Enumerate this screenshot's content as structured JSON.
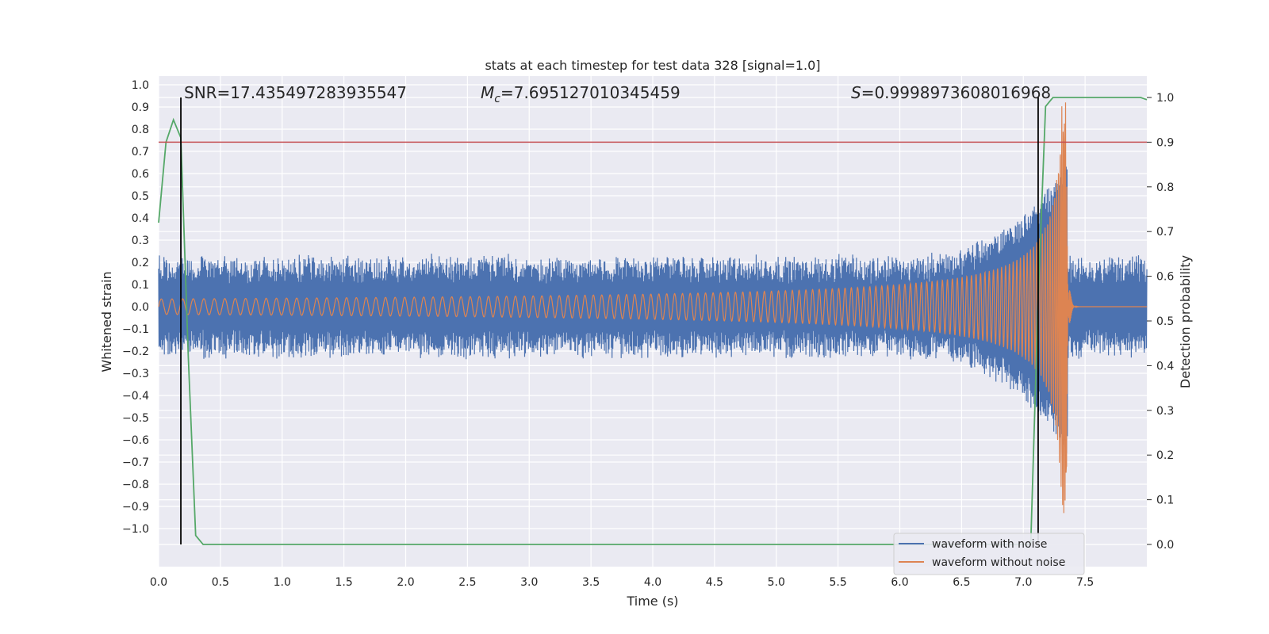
{
  "chart_data": {
    "type": "line",
    "title": "stats at each timestep for test data 328 [signal=1.0]",
    "xlabel": "Time (s)",
    "ylabel": "Whitened strain",
    "y2label": "Detection probability",
    "xlim": [
      0.0,
      8.0
    ],
    "ylim": [
      -1.15,
      1.0
    ],
    "y2lim": [
      -0.05,
      1.04
    ],
    "x_ticks": [
      "0.0",
      "0.5",
      "1.0",
      "1.5",
      "2.0",
      "2.5",
      "3.0",
      "3.5",
      "4.0",
      "4.5",
      "5.0",
      "5.5",
      "6.0",
      "6.5",
      "7.0",
      "7.5"
    ],
    "y_ticks": [
      "1.0",
      "0.9",
      "0.8",
      "0.7",
      "0.6",
      "0.5",
      "0.4",
      "0.3",
      "0.2",
      "0.1",
      "0.0",
      "−0.1",
      "−0.2",
      "−0.3",
      "−0.4",
      "−0.5",
      "−0.6",
      "−0.7",
      "−0.8",
      "−0.9",
      "−1.0"
    ],
    "y2_ticks": [
      "1.0",
      "0.9",
      "0.8",
      "0.7",
      "0.6",
      "0.5",
      "0.4",
      "0.3",
      "0.2",
      "0.1",
      "0.0"
    ],
    "grid": true,
    "legend_position": "lower-right",
    "annotations": {
      "snr": "SNR=17.435497283935547",
      "mc_symbol": "M",
      "mc_sub": "c",
      "mc_value": "=7.695127010345459",
      "s_symbol": "S",
      "s_value": "=0.9998973608016968"
    },
    "threshold": {
      "axis": "y2",
      "value": 0.9,
      "color": "#c44e52"
    },
    "vertical_lines": [
      0.18,
      7.12
    ],
    "series": [
      {
        "name": "waveform with noise",
        "color": "#4c72b0",
        "axis": "y",
        "description_envelope": {
          "noise_amplitude": 0.22,
          "peak_time": 7.3,
          "peak_amplitude": 0.65,
          "end_time": 7.36
        }
      },
      {
        "name": "waveform without noise",
        "color": "#dd8452",
        "axis": "y",
        "description_envelope": {
          "start_amplitude": 0.035,
          "merger_time": 7.35,
          "peak_amplitude": 0.93
        }
      },
      {
        "name": "",
        "color": "#55a868",
        "axis": "y2",
        "x": [
          0.0,
          0.06,
          0.12,
          0.18,
          0.24,
          0.3,
          0.36,
          0.42,
          7.06,
          7.12,
          7.18,
          7.24,
          7.3,
          7.95,
          8.0
        ],
        "values": [
          0.72,
          0.9,
          0.95,
          0.91,
          0.42,
          0.02,
          0.0,
          0.0,
          0.0,
          0.55,
          0.98,
          1.0,
          1.0,
          1.0,
          0.995
        ]
      }
    ]
  }
}
